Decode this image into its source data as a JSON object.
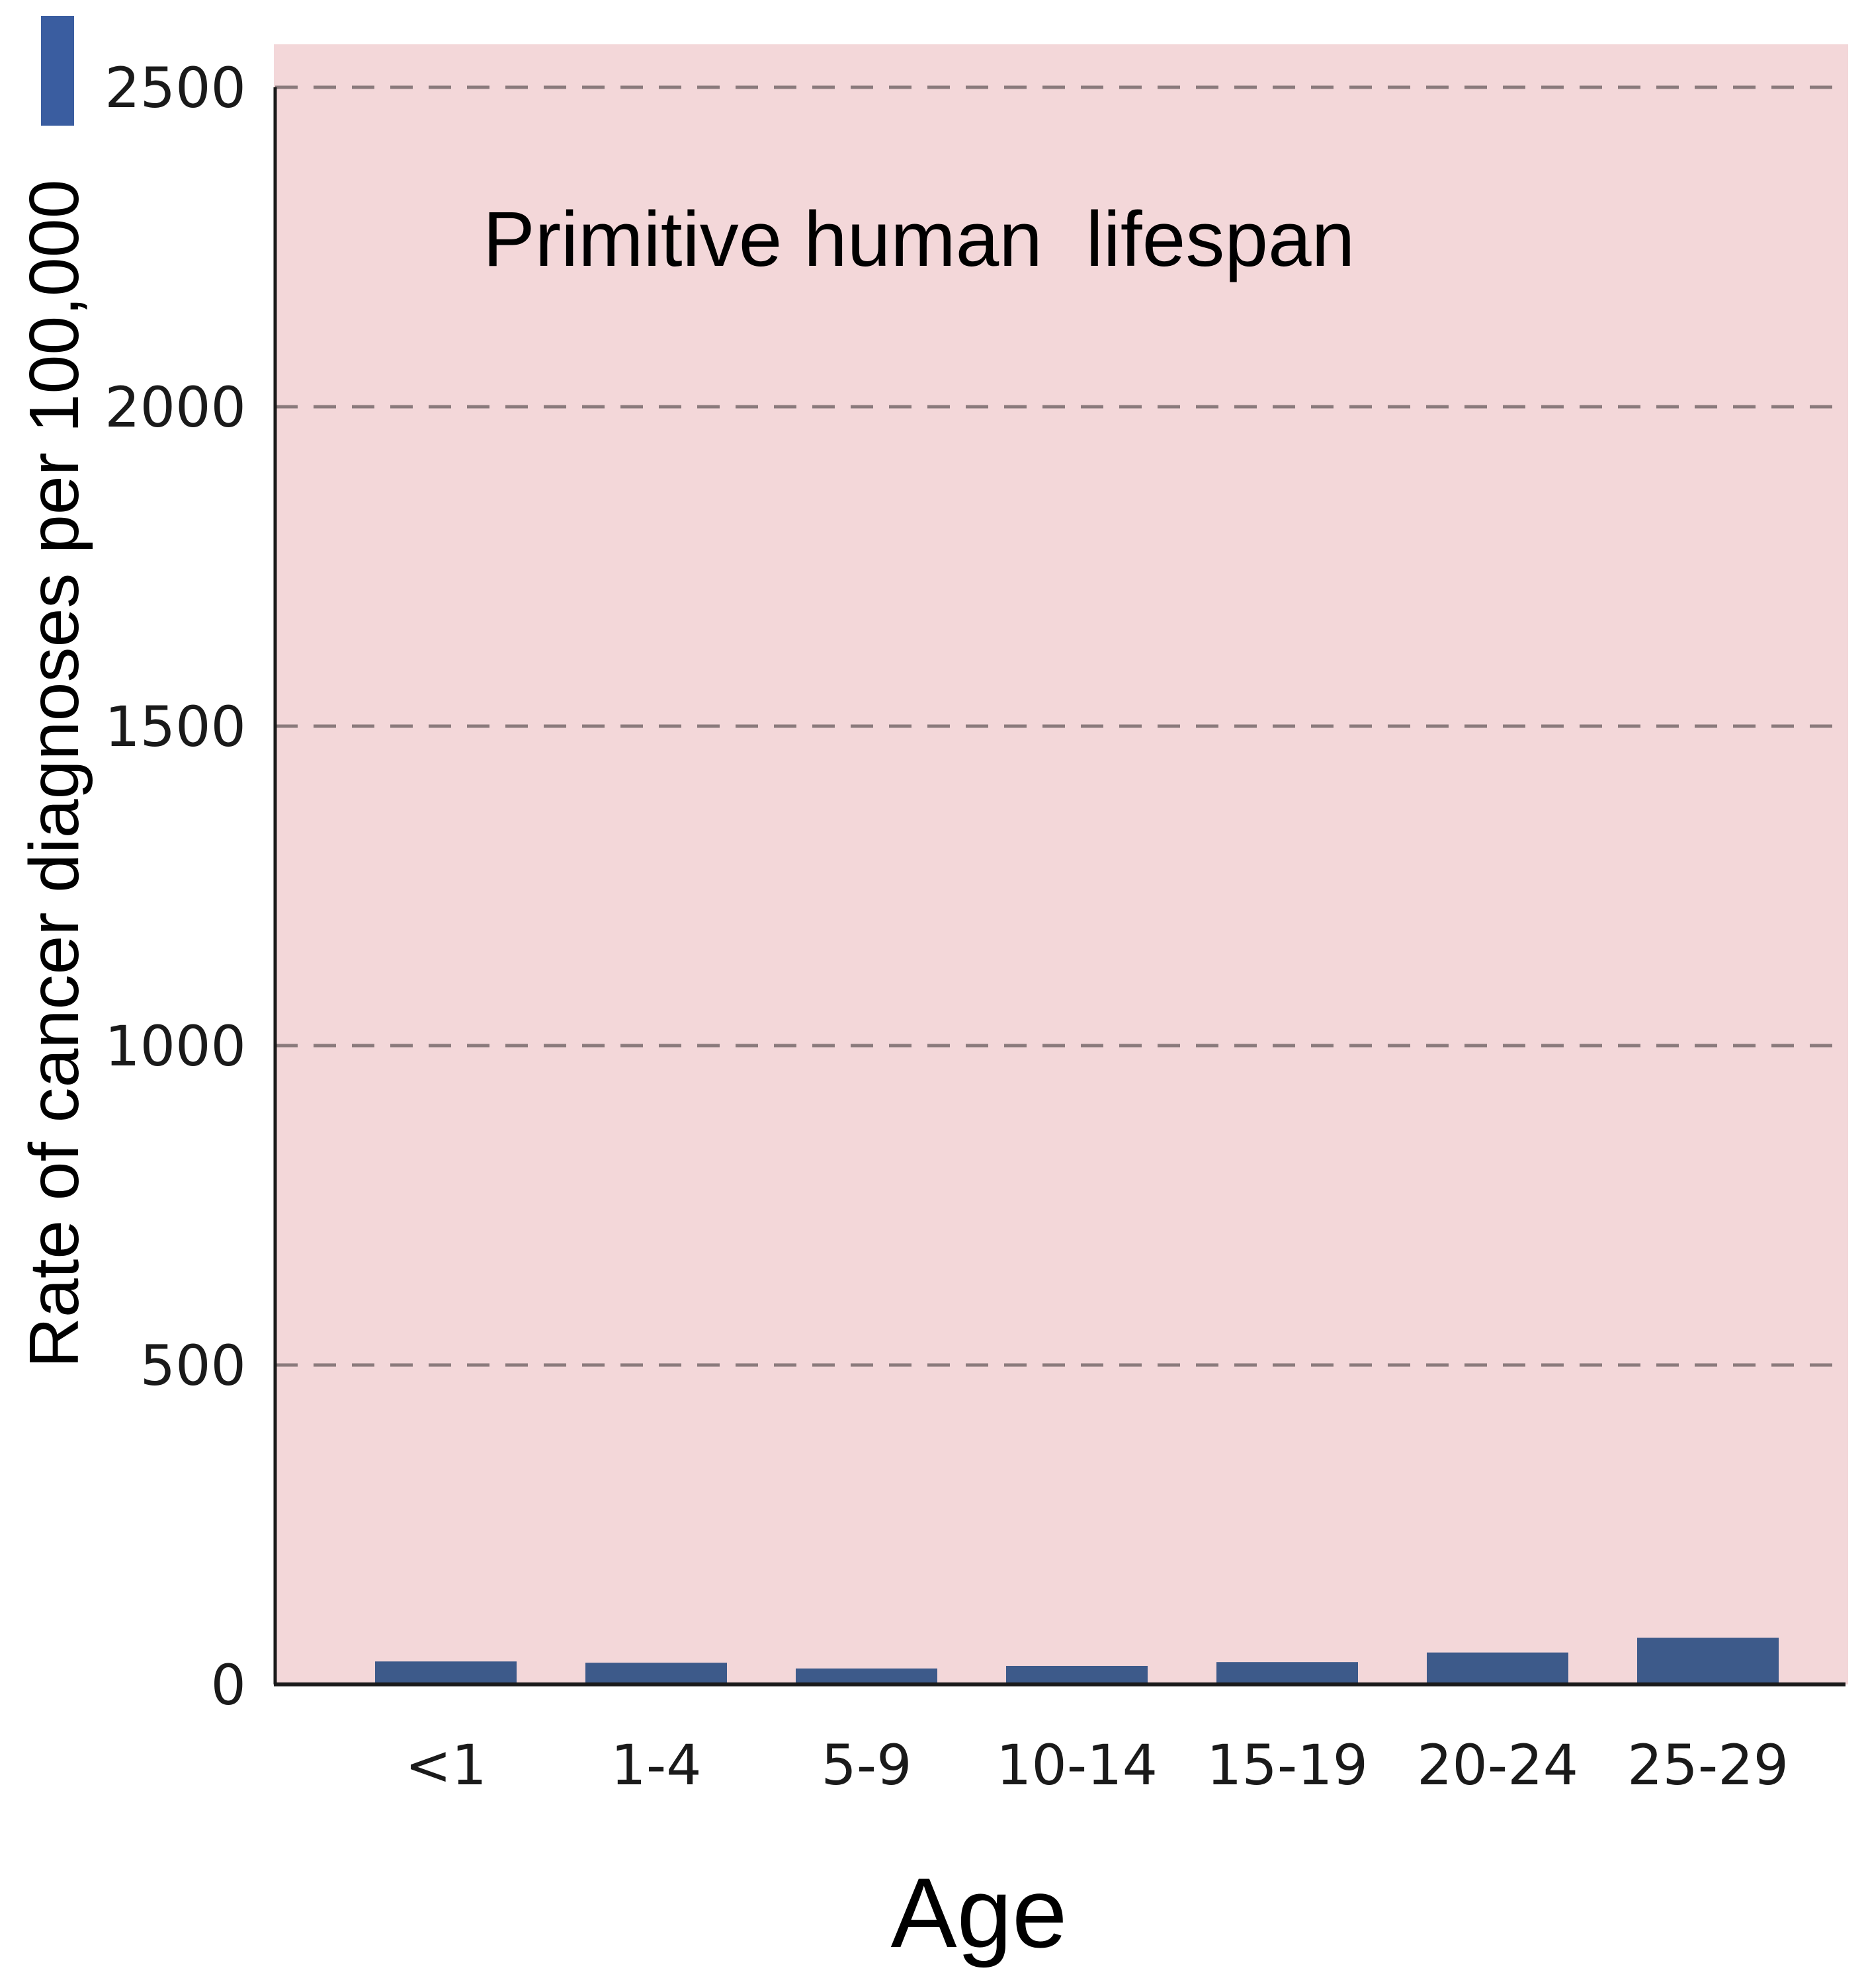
{
  "chart_data": {
    "type": "bar",
    "annotation": "Primitive human  lifespan",
    "xlabel": "Age",
    "ylabel": "Rate of cancer diagnoses per 100,000",
    "categories": [
      "<1",
      "1-4",
      "5-9",
      "10-14",
      "15-19",
      "20-24",
      "25-29"
    ],
    "values": [
      36,
      34,
      25,
      29,
      35,
      50,
      73
    ],
    "ylim": [
      0,
      2500
    ],
    "yticks": [
      "0",
      "500",
      "1000",
      "1500",
      "2000",
      "2500"
    ],
    "ytick_values": [
      0,
      500,
      1000,
      1500,
      2000,
      2500
    ],
    "grid": "dashed horizontal",
    "legend": "top-left",
    "colors": {
      "bar": "#3d5a8a",
      "legend_swatch": "#3a5da0",
      "plot_background": "#f3d7d9",
      "grid": "#8a7a7c",
      "axis": "#1a1a1a"
    }
  }
}
